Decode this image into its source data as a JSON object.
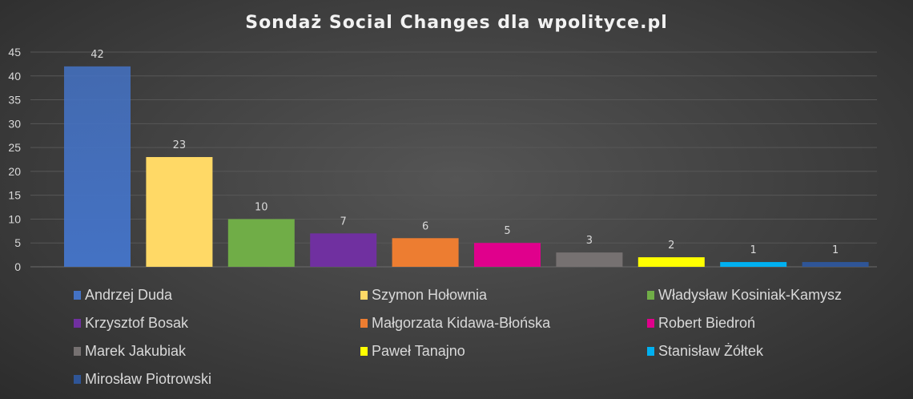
{
  "chart_data": {
    "type": "bar",
    "title": "Sondaż Social Changes dla wpolityce.pl",
    "xlabel": "",
    "ylabel": "",
    "ylim": [
      0,
      45
    ],
    "yticks": [
      "0",
      "5",
      "10",
      "15",
      "20",
      "25",
      "30",
      "35",
      "40",
      "45"
    ],
    "grid": true,
    "legend_position": "bottom",
    "categories": [
      "Andrzej Duda",
      "Szymon Hołownia",
      "Władysław Kosiniak-Kamysz",
      "Krzysztof Bosak",
      "Małgorzata Kidawa-Błońska",
      "Robert Biedroń",
      "Marek Jakubiak",
      "Paweł Tanajno",
      "Stanisław Żółtek",
      "Mirosław Piotrowski"
    ],
    "values": [
      42,
      23,
      10,
      7,
      6,
      5,
      3,
      2,
      1,
      1
    ],
    "data_labels": [
      "42",
      "23",
      "10",
      "7",
      "6",
      "5",
      "3",
      "2",
      "1",
      "1"
    ],
    "colors": [
      "#4472c4",
      "#ffd966",
      "#70ad47",
      "#7030a0",
      "#ed7d31",
      "#e0008c",
      "#767171",
      "#ffff00",
      "#00b0f0",
      "#2f5597"
    ]
  }
}
